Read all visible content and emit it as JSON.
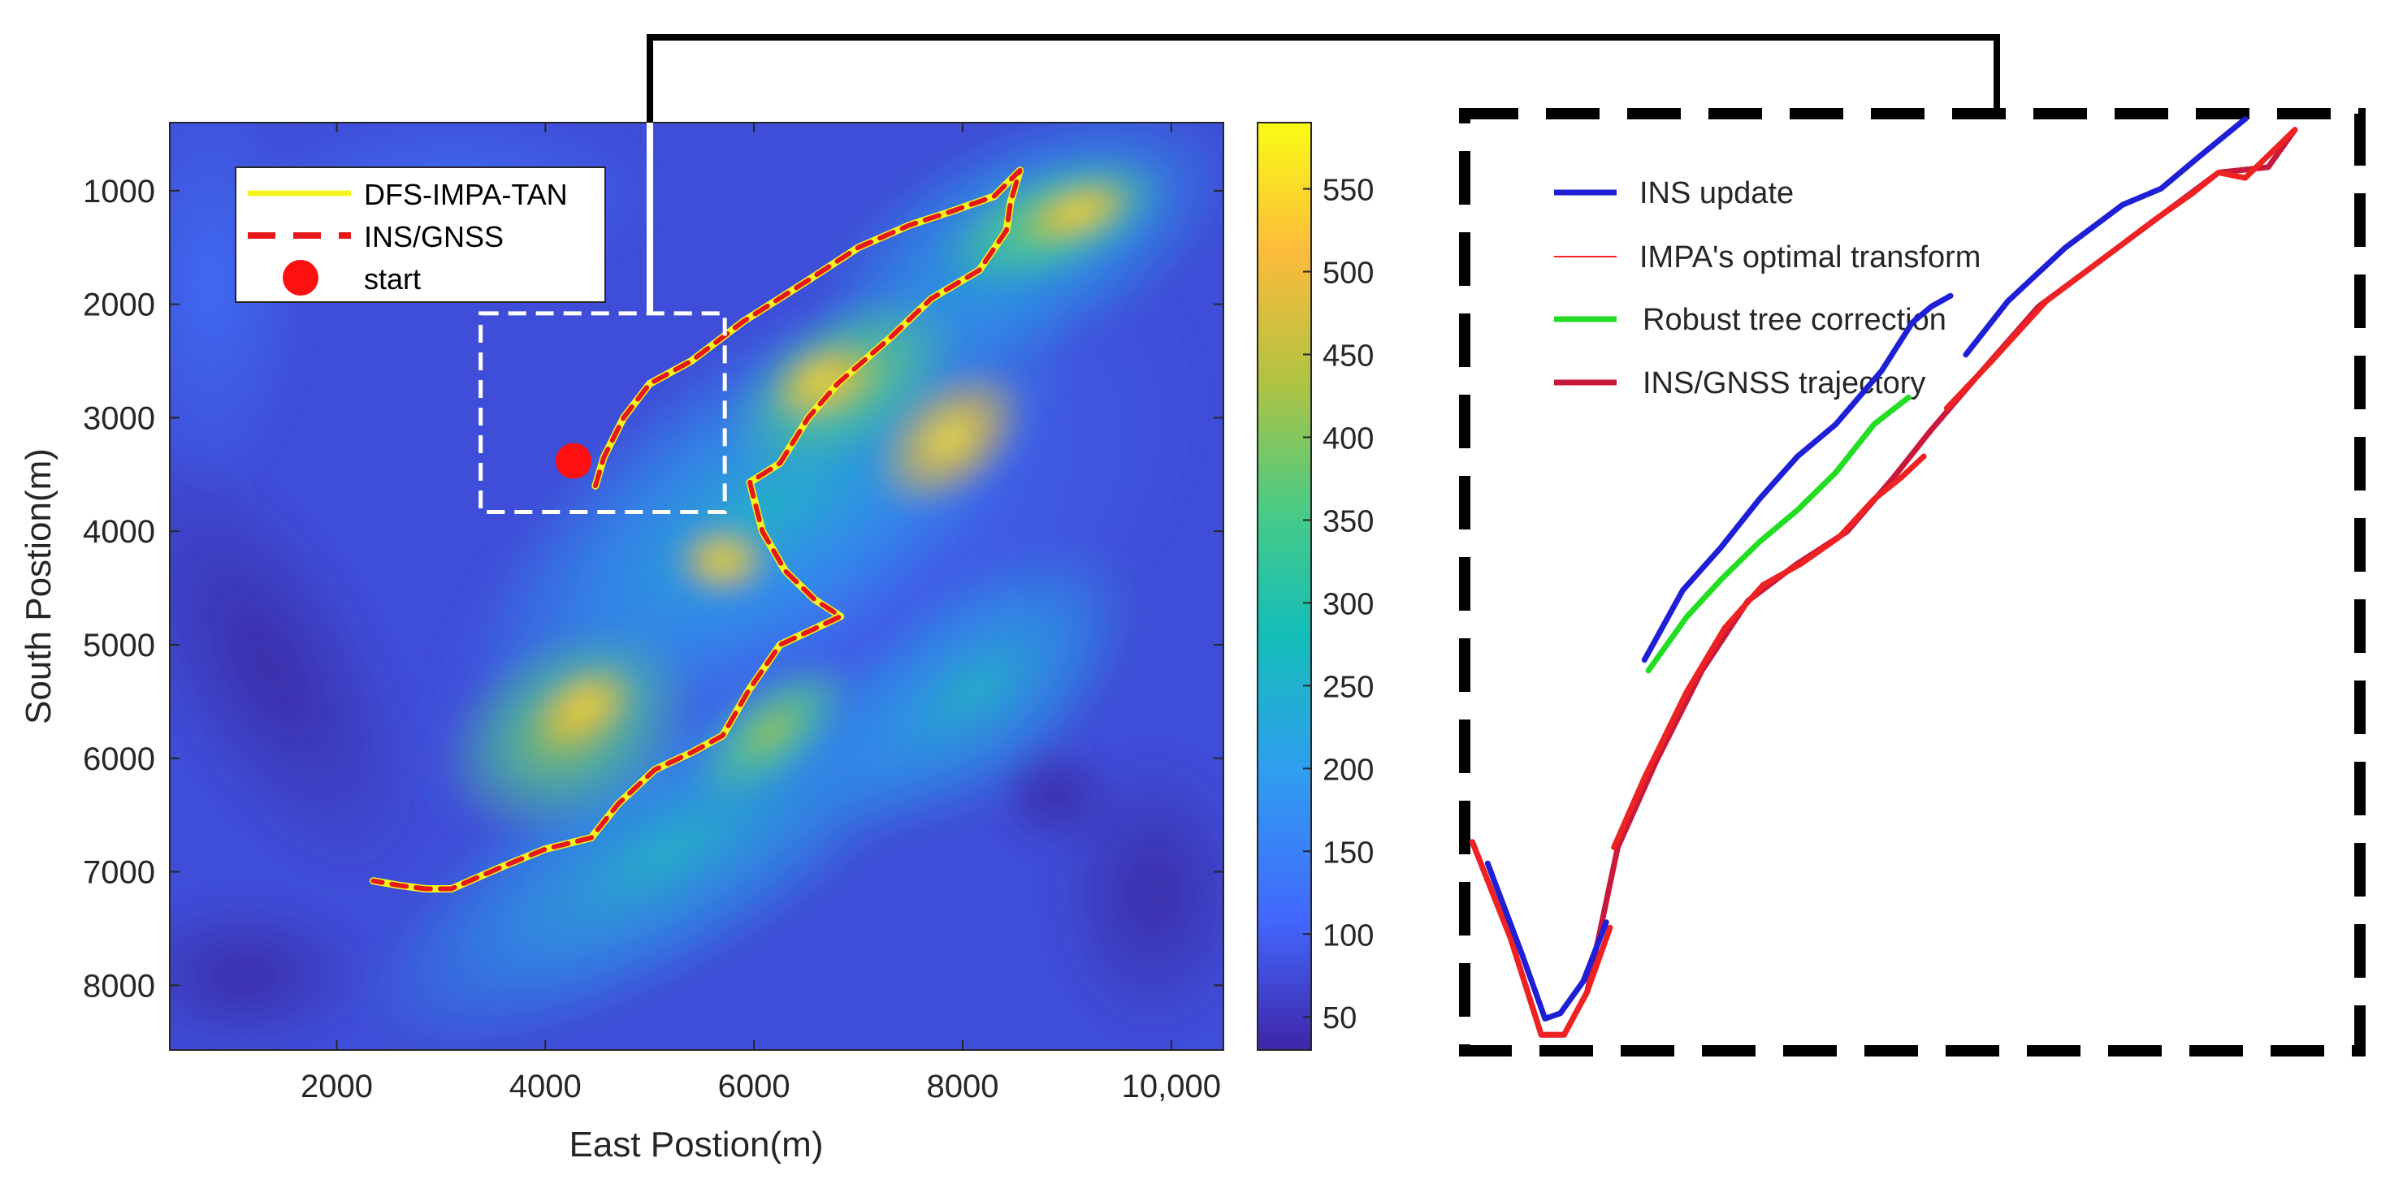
{
  "chart_data": [
    {
      "type": "heatmap",
      "panel": "terrain-map",
      "xlabel": "East Postion(m)",
      "ylabel": "South Postion(m)",
      "xlim": [
        400,
        10500
      ],
      "ylim": [
        400,
        8570
      ],
      "y_direction": "increasing-downward",
      "xticks": [
        2000,
        4000,
        6000,
        8000,
        10000
      ],
      "xtick_labels": [
        "2000",
        "4000",
        "6000",
        "8000",
        "10,000"
      ],
      "yticks": [
        1000,
        2000,
        3000,
        4000,
        5000,
        6000,
        7000,
        8000
      ],
      "ytick_labels": [
        "1000",
        "2000",
        "3000",
        "4000",
        "5000",
        "6000",
        "7000",
        "8000"
      ],
      "colorbar": {
        "range": [
          30,
          590
        ],
        "ticks": [
          50,
          100,
          150,
          200,
          250,
          300,
          350,
          400,
          450,
          500,
          550
        ],
        "tick_labels": [
          "50",
          "100",
          "150",
          "200",
          "250",
          "300",
          "350",
          "400",
          "450",
          "500",
          "550"
        ],
        "colormap": [
          "#3e26a8",
          "#4367fd",
          "#2f9ef0",
          "#14beb7",
          "#48cb86",
          "#b0c342",
          "#fcbb3c",
          "#f9fb15"
        ]
      },
      "legend": {
        "position": "top-left",
        "entries": [
          {
            "label": "DFS-IMPA-TAN",
            "color": "#f5f51e",
            "style": "solid"
          },
          {
            "label": "INS/GNSS",
            "color": "#e6191a",
            "style": "dashed"
          },
          {
            "label": "start",
            "color": "#ff0000",
            "style": "marker"
          }
        ]
      },
      "start_point": {
        "x": 4270,
        "y": 3380
      },
      "zoom_region": {
        "x": [
          3380,
          5720
        ],
        "y": [
          2080,
          3830
        ]
      },
      "series": [
        {
          "name": "INS/GNSS",
          "x": [
            4480,
            4560,
            4750,
            5000,
            5400,
            5900,
            6500,
            7000,
            7500,
            7900,
            8300,
            8550,
            8460,
            8420,
            8160,
            7700,
            7300,
            6800,
            6520,
            6250,
            5960,
            6080,
            6300,
            6580,
            6830,
            6600,
            6250,
            5950,
            5700,
            5400,
            5050,
            4700,
            4440,
            4000,
            3600,
            3350,
            3100,
            2850,
            2600,
            2350
          ],
          "y": [
            3600,
            3350,
            3000,
            2700,
            2500,
            2150,
            1800,
            1500,
            1300,
            1180,
            1050,
            820,
            1100,
            1350,
            1700,
            1950,
            2300,
            2700,
            3000,
            3400,
            3570,
            4000,
            4350,
            4600,
            4750,
            4850,
            5000,
            5400,
            5800,
            5950,
            6100,
            6400,
            6700,
            6800,
            6950,
            7050,
            7150,
            7150,
            7120,
            7080
          ]
        },
        {
          "name": "DFS-IMPA-TAN",
          "x": [
            4480,
            4560,
            4750,
            5000,
            5400,
            5900,
            6500,
            7000,
            7500,
            7900,
            8300,
            8550,
            8460,
            8420,
            8160,
            7700,
            7300,
            6800,
            6520,
            6250,
            5960,
            6080,
            6300,
            6580,
            6830,
            6600,
            6250,
            5950,
            5700,
            5400,
            5050,
            4700,
            4440,
            4000,
            3600,
            3350,
            3100,
            2850,
            2600,
            2350
          ],
          "y": [
            3600,
            3350,
            3000,
            2700,
            2500,
            2150,
            1800,
            1500,
            1300,
            1180,
            1050,
            820,
            1100,
            1350,
            1700,
            1950,
            2300,
            2700,
            3000,
            3400,
            3570,
            4000,
            4350,
            4600,
            4750,
            4850,
            5000,
            5400,
            5800,
            5950,
            6100,
            6400,
            6700,
            6800,
            6950,
            7050,
            7150,
            7150,
            7120,
            7080
          ]
        }
      ]
    },
    {
      "type": "line",
      "panel": "zoom-inset",
      "legend": {
        "position": "top-left",
        "entries": [
          {
            "label": "INS update",
            "color": "#1f1fd6"
          },
          {
            "label": "IMPA's optimal transform",
            "color": "#ee2222"
          },
          {
            "label": "Robust tree correction",
            "color": "#22dd22"
          },
          {
            "label": "INS/GNSS trajectory",
            "color": "#c8183c"
          }
        ]
      },
      "series": [
        {
          "name": "INS update",
          "color": "#1f1fd6",
          "x": [
            3440,
            3530,
            3590,
            3630,
            3690,
            3750
          ],
          "y": [
            3480,
            3650,
            3770,
            3760,
            3700,
            3590
          ]
        },
        {
          "name": "INS update",
          "color": "#1f1fd6",
          "x": [
            3850,
            3950,
            4050,
            4150,
            4250,
            4350,
            4470,
            4550,
            4600,
            4650
          ],
          "y": [
            3100,
            2970,
            2890,
            2800,
            2720,
            2660,
            2560,
            2470,
            2440,
            2420
          ]
        },
        {
          "name": "INS update",
          "color": "#1f1fd6",
          "x": [
            4690,
            4800,
            4950,
            5100,
            5200,
            5300,
            5420
          ],
          "y": [
            2530,
            2430,
            2330,
            2250,
            2220,
            2160,
            2090
          ]
        },
        {
          "name": "Robust tree correction",
          "color": "#22dd22",
          "x": [
            3860,
            3960,
            4050,
            4150,
            4250,
            4350,
            4450,
            4540
          ],
          "y": [
            3120,
            3020,
            2950,
            2880,
            2820,
            2750,
            2660,
            2610
          ]
        },
        {
          "name": "IMPA's optimal transform",
          "color": "#ee2222",
          "x": [
            3400,
            3500,
            3580,
            3640,
            3700,
            3760
          ],
          "y": [
            3440,
            3620,
            3800,
            3800,
            3720,
            3600
          ]
        },
        {
          "name": "IMPA's optimal transform",
          "color": "#ee2222",
          "x": [
            3770,
            3850,
            3960,
            4060,
            4160,
            4260,
            4360,
            4450,
            4520,
            4580
          ],
          "y": [
            3450,
            3320,
            3160,
            3040,
            2960,
            2920,
            2870,
            2800,
            2760,
            2720
          ]
        },
        {
          "name": "IMPA's optimal transform",
          "color": "#ee2222",
          "x": [
            4640,
            4760,
            4900,
            5050,
            5180,
            5280,
            5350,
            5420,
            5550
          ],
          "y": [
            2630,
            2540,
            2430,
            2350,
            2280,
            2230,
            2190,
            2200,
            2110
          ]
        },
        {
          "name": "INS/GNSS trajectory",
          "color": "#c8183c",
          "x": [
            3400,
            3500,
            3580,
            3640,
            3700,
            3780,
            3880,
            4000,
            4120,
            4250,
            4380,
            4500,
            4600,
            4720,
            4880,
            5050,
            5200,
            5350,
            5480,
            5550
          ],
          "y": [
            3440,
            3620,
            3800,
            3800,
            3720,
            3450,
            3290,
            3120,
            2990,
            2920,
            2860,
            2760,
            2670,
            2570,
            2440,
            2350,
            2270,
            2190,
            2180,
            2110
          ]
        }
      ]
    }
  ]
}
